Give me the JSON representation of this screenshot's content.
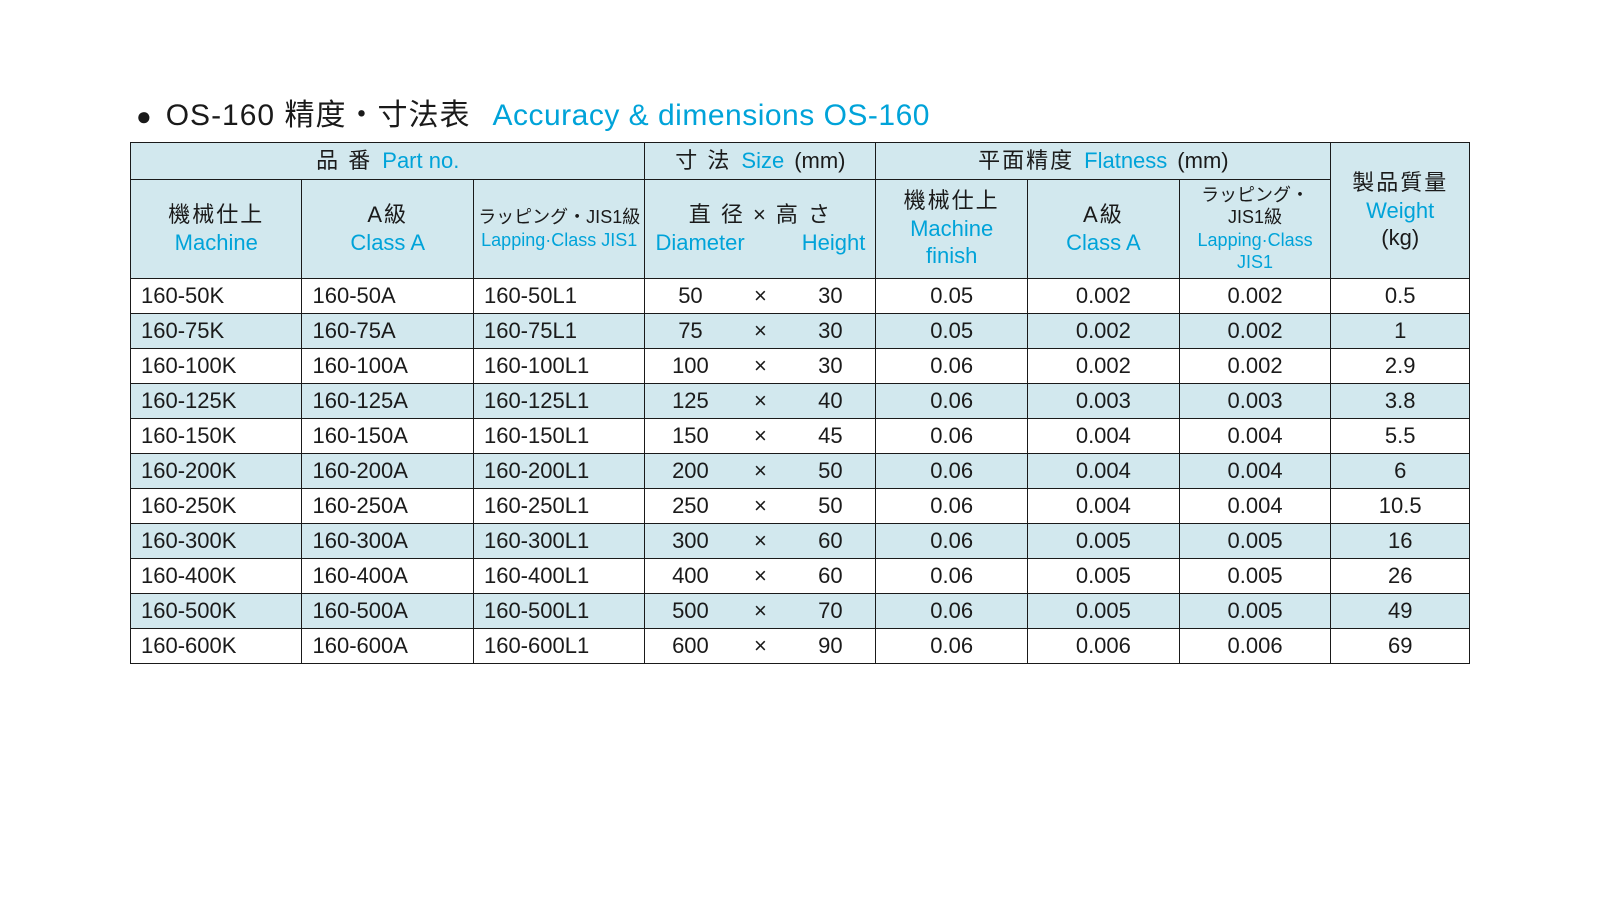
{
  "title": {
    "bullet": "●",
    "jp": "OS-160 精度・寸法表",
    "en": "Accuracy & dimensions OS-160"
  },
  "colors": {
    "text": "#1a1a1a",
    "accent": "#00a3d9",
    "border": "#1a1a1a",
    "header_bg": "#d2e8ee",
    "row_bg": "#ffffff",
    "row_shade_bg": "#d2e8ee"
  },
  "header": {
    "part_no": {
      "jp": "品 番",
      "en": "Part no."
    },
    "size": {
      "jp": "寸 法",
      "en": "Size",
      "unit": "(mm)"
    },
    "flatness": {
      "jp": "平面精度",
      "en": "Flatness",
      "unit": "(mm)"
    },
    "weight": {
      "jp": "製品質量",
      "en": "Weight",
      "unit": "(kg)"
    },
    "machine": {
      "jp": "機械仕上",
      "en": "Machine"
    },
    "class_a": {
      "jp": "A級",
      "en": "Class A"
    },
    "lapping": {
      "jp": "ラッピング・JIS1級",
      "en": "Lapping·Class JIS1"
    },
    "dia_h": {
      "jp": "直 径 × 高 さ",
      "en_d": "Diameter",
      "en_h": "Height"
    },
    "machine_f": {
      "jp": "機械仕上",
      "en1": "Machine",
      "en2": "finish"
    }
  },
  "rows": [
    {
      "shade": false,
      "m": "160-50K",
      "a": "160-50A",
      "l": "160-50L1",
      "d": "50",
      "h": "30",
      "fm": "0.05",
      "fa": "0.002",
      "fl": "0.002",
      "w": "0.5"
    },
    {
      "shade": true,
      "m": "160-75K",
      "a": "160-75A",
      "l": "160-75L1",
      "d": "75",
      "h": "30",
      "fm": "0.05",
      "fa": "0.002",
      "fl": "0.002",
      "w": "1"
    },
    {
      "shade": false,
      "m": "160-100K",
      "a": "160-100A",
      "l": "160-100L1",
      "d": "100",
      "h": "30",
      "fm": "0.06",
      "fa": "0.002",
      "fl": "0.002",
      "w": "2.9"
    },
    {
      "shade": true,
      "m": "160-125K",
      "a": "160-125A",
      "l": "160-125L1",
      "d": "125",
      "h": "40",
      "fm": "0.06",
      "fa": "0.003",
      "fl": "0.003",
      "w": "3.8"
    },
    {
      "shade": false,
      "m": "160-150K",
      "a": "160-150A",
      "l": "160-150L1",
      "d": "150",
      "h": "45",
      "fm": "0.06",
      "fa": "0.004",
      "fl": "0.004",
      "w": "5.5"
    },
    {
      "shade": true,
      "m": "160-200K",
      "a": "160-200A",
      "l": "160-200L1",
      "d": "200",
      "h": "50",
      "fm": "0.06",
      "fa": "0.004",
      "fl": "0.004",
      "w": "6"
    },
    {
      "shade": false,
      "m": "160-250K",
      "a": "160-250A",
      "l": "160-250L1",
      "d": "250",
      "h": "50",
      "fm": "0.06",
      "fa": "0.004",
      "fl": "0.004",
      "w": "10.5"
    },
    {
      "shade": true,
      "m": "160-300K",
      "a": "160-300A",
      "l": "160-300L1",
      "d": "300",
      "h": "60",
      "fm": "0.06",
      "fa": "0.005",
      "fl": "0.005",
      "w": "16"
    },
    {
      "shade": false,
      "m": "160-400K",
      "a": "160-400A",
      "l": "160-400L1",
      "d": "400",
      "h": "60",
      "fm": "0.06",
      "fa": "0.005",
      "fl": "0.005",
      "w": "26"
    },
    {
      "shade": true,
      "m": "160-500K",
      "a": "160-500A",
      "l": "160-500L1",
      "d": "500",
      "h": "70",
      "fm": "0.06",
      "fa": "0.005",
      "fl": "0.005",
      "w": "49"
    },
    {
      "shade": false,
      "m": "160-600K",
      "a": "160-600A",
      "l": "160-600L1",
      "d": "600",
      "h": "90",
      "fm": "0.06",
      "fa": "0.006",
      "fl": "0.006",
      "w": "69"
    }
  ],
  "layout": {
    "times": "×",
    "col_widths_pct": {
      "part": 10.4,
      "size": 14.0,
      "flat": 9.2,
      "weight": 8.4
    },
    "font_sizes_pt": {
      "title": 30,
      "header": 22,
      "header_small": 18,
      "data": 22
    }
  }
}
